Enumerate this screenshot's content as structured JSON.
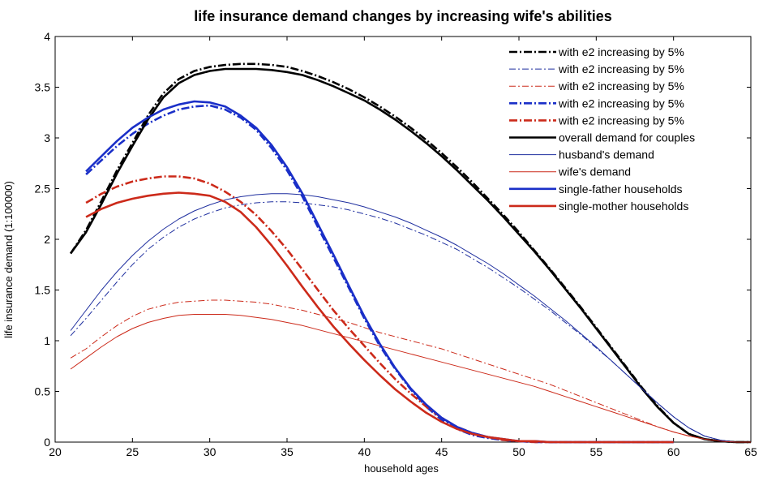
{
  "chart_data": {
    "type": "line",
    "title": "life insurance demand changes by increasing wife's abilities",
    "xlabel": "household ages",
    "ylabel": "life insurance demand (1:100000)",
    "xlim": [
      20,
      65
    ],
    "ylim": [
      0,
      4
    ],
    "x_ticks": [
      "20",
      "25",
      "30",
      "35",
      "40",
      "45",
      "50",
      "55",
      "60",
      "65"
    ],
    "y_ticks": [
      "0",
      "0.5",
      "1",
      "1.5",
      "2",
      "2.5",
      "3",
      "3.5",
      "4"
    ],
    "grid": false,
    "legend_position": "top-right",
    "series": [
      {
        "name": "with e2 increasing by 5%",
        "color": "#000000",
        "style": "dashdot",
        "weight": "bold",
        "x": [
          21,
          22,
          23,
          24,
          25,
          26,
          27,
          28,
          29,
          30,
          31,
          32,
          33,
          34,
          35,
          36,
          37,
          38,
          39,
          40,
          41,
          42,
          43,
          44,
          45,
          46,
          47,
          48,
          49,
          50,
          51,
          52,
          53,
          54,
          55,
          56,
          57,
          58,
          59,
          60,
          61,
          62,
          63,
          64,
          65
        ],
        "y": [
          1.86,
          2.09,
          2.38,
          2.68,
          2.95,
          3.22,
          3.44,
          3.58,
          3.66,
          3.7,
          3.72,
          3.73,
          3.73,
          3.72,
          3.7,
          3.66,
          3.61,
          3.55,
          3.48,
          3.4,
          3.31,
          3.21,
          3.1,
          2.98,
          2.85,
          2.71,
          2.56,
          2.4,
          2.24,
          2.07,
          1.89,
          1.71,
          1.52,
          1.33,
          1.13,
          0.93,
          0.73,
          0.53,
          0.35,
          0.19,
          0.08,
          0.03,
          0.01,
          0.0,
          0.0
        ]
      },
      {
        "name": "with e2 increasing by 5%",
        "color": "#1f2f9f",
        "style": "dashdot",
        "weight": "thin",
        "x": [
          21,
          22,
          23,
          24,
          25,
          26,
          27,
          28,
          29,
          30,
          31,
          32,
          33,
          34,
          35,
          36,
          37,
          38,
          39,
          40,
          41,
          42,
          43,
          44,
          45,
          46,
          47,
          48,
          49,
          50,
          51,
          52,
          53,
          54,
          55,
          56,
          57,
          58,
          59,
          60,
          61,
          62,
          63,
          64,
          65
        ],
        "y": [
          1.05,
          1.22,
          1.4,
          1.58,
          1.75,
          1.9,
          2.02,
          2.12,
          2.2,
          2.26,
          2.31,
          2.34,
          2.36,
          2.37,
          2.37,
          2.36,
          2.34,
          2.32,
          2.29,
          2.25,
          2.21,
          2.16,
          2.1,
          2.04,
          1.97,
          1.9,
          1.81,
          1.72,
          1.62,
          1.52,
          1.41,
          1.3,
          1.18,
          1.06,
          0.93,
          0.8,
          0.66,
          0.52,
          0.38,
          0.25,
          0.14,
          0.06,
          0.02,
          0.0,
          0.0
        ]
      },
      {
        "name": "with e2 increasing by 5%",
        "color": "#cc2a1a",
        "style": "dashdot",
        "weight": "thin",
        "x": [
          21,
          22,
          23,
          24,
          25,
          26,
          27,
          28,
          29,
          30,
          31,
          32,
          33,
          34,
          35,
          36,
          37,
          38,
          39,
          40,
          41,
          42,
          43,
          44,
          45,
          46,
          47,
          48,
          49,
          50,
          51,
          52,
          53,
          54,
          55,
          56,
          57,
          58,
          59,
          60,
          61,
          62,
          63,
          64,
          65
        ],
        "y": [
          0.83,
          0.92,
          1.04,
          1.15,
          1.24,
          1.31,
          1.35,
          1.38,
          1.39,
          1.4,
          1.4,
          1.39,
          1.38,
          1.36,
          1.33,
          1.3,
          1.26,
          1.22,
          1.18,
          1.13,
          1.08,
          1.04,
          1.0,
          0.96,
          0.92,
          0.87,
          0.82,
          0.77,
          0.72,
          0.67,
          0.62,
          0.57,
          0.51,
          0.45,
          0.39,
          0.33,
          0.27,
          0.21,
          0.15,
          0.1,
          0.06,
          0.03,
          0.01,
          0.0,
          0.0
        ]
      },
      {
        "name": "with e2 increasing by 5%",
        "color": "#1a2fc8",
        "style": "dashdot",
        "weight": "bold",
        "x": [
          22,
          23,
          24,
          25,
          26,
          27,
          28,
          29,
          30,
          31,
          32,
          33,
          34,
          35,
          36,
          37,
          38,
          39,
          40,
          41,
          42,
          43,
          44,
          45,
          46,
          47,
          48,
          49,
          50,
          51,
          52,
          53,
          54,
          55,
          56,
          57,
          58,
          59,
          60
        ],
        "y": [
          2.64,
          2.78,
          2.92,
          3.04,
          3.14,
          3.22,
          3.28,
          3.31,
          3.32,
          3.28,
          3.2,
          3.08,
          2.9,
          2.68,
          2.42,
          2.12,
          1.82,
          1.52,
          1.22,
          0.95,
          0.72,
          0.52,
          0.35,
          0.22,
          0.13,
          0.07,
          0.04,
          0.02,
          0.01,
          0.0,
          0.0,
          0.0,
          0.0,
          0.0,
          0.0,
          0.0,
          0.0,
          0.0,
          0.0
        ]
      },
      {
        "name": "with e2 increasing by 5%",
        "color": "#cc2a1a",
        "style": "dashdot",
        "weight": "bold",
        "x": [
          22,
          23,
          24,
          25,
          26,
          27,
          28,
          29,
          30,
          31,
          32,
          33,
          34,
          35,
          36,
          37,
          38,
          39,
          40,
          41,
          42,
          43,
          44,
          45,
          46,
          47,
          48,
          49,
          50,
          51,
          52,
          53,
          54,
          55,
          56,
          57,
          58,
          59,
          60
        ],
        "y": [
          2.36,
          2.45,
          2.52,
          2.57,
          2.6,
          2.62,
          2.62,
          2.6,
          2.55,
          2.47,
          2.37,
          2.24,
          2.08,
          1.9,
          1.7,
          1.5,
          1.3,
          1.12,
          0.95,
          0.78,
          0.62,
          0.48,
          0.35,
          0.24,
          0.15,
          0.09,
          0.05,
          0.02,
          0.01,
          0.0,
          0.0,
          0.0,
          0.0,
          0.0,
          0.0,
          0.0,
          0.0,
          0.0,
          0.0
        ]
      },
      {
        "name": "overall demand for couples",
        "color": "#000000",
        "style": "solid",
        "weight": "bold",
        "x": [
          21,
          22,
          23,
          24,
          25,
          26,
          27,
          28,
          29,
          30,
          31,
          32,
          33,
          34,
          35,
          36,
          37,
          38,
          39,
          40,
          41,
          42,
          43,
          44,
          45,
          46,
          47,
          48,
          49,
          50,
          51,
          52,
          53,
          54,
          55,
          56,
          57,
          58,
          59,
          60,
          61,
          62,
          63,
          64,
          65
        ],
        "y": [
          1.86,
          2.07,
          2.35,
          2.65,
          2.92,
          3.18,
          3.4,
          3.54,
          3.62,
          3.66,
          3.68,
          3.68,
          3.68,
          3.67,
          3.65,
          3.62,
          3.57,
          3.51,
          3.44,
          3.37,
          3.28,
          3.18,
          3.07,
          2.95,
          2.82,
          2.68,
          2.53,
          2.38,
          2.22,
          2.05,
          1.88,
          1.7,
          1.51,
          1.32,
          1.12,
          0.92,
          0.72,
          0.52,
          0.34,
          0.19,
          0.08,
          0.03,
          0.01,
          0.0,
          0.0
        ]
      },
      {
        "name": "husband's demand",
        "color": "#1f2f9f",
        "style": "solid",
        "weight": "thin",
        "x": [
          21,
          22,
          23,
          24,
          25,
          26,
          27,
          28,
          29,
          30,
          31,
          32,
          33,
          34,
          35,
          36,
          37,
          38,
          39,
          40,
          41,
          42,
          43,
          44,
          45,
          46,
          47,
          48,
          49,
          50,
          51,
          52,
          53,
          54,
          55,
          56,
          57,
          58,
          59,
          60,
          61,
          62,
          63,
          64,
          65
        ],
        "y": [
          1.1,
          1.3,
          1.5,
          1.68,
          1.84,
          1.98,
          2.1,
          2.2,
          2.28,
          2.34,
          2.39,
          2.42,
          2.44,
          2.45,
          2.45,
          2.44,
          2.42,
          2.39,
          2.36,
          2.32,
          2.27,
          2.22,
          2.16,
          2.09,
          2.02,
          1.94,
          1.85,
          1.76,
          1.66,
          1.55,
          1.44,
          1.32,
          1.2,
          1.07,
          0.94,
          0.8,
          0.66,
          0.52,
          0.38,
          0.25,
          0.14,
          0.06,
          0.02,
          0.0,
          0.0
        ]
      },
      {
        "name": "wife's demand",
        "color": "#cc2a1a",
        "style": "solid",
        "weight": "thin",
        "x": [
          21,
          22,
          23,
          24,
          25,
          26,
          27,
          28,
          29,
          30,
          31,
          32,
          33,
          34,
          35,
          36,
          37,
          38,
          39,
          40,
          41,
          42,
          43,
          44,
          45,
          46,
          47,
          48,
          49,
          50,
          51,
          52,
          53,
          54,
          55,
          56,
          57,
          58,
          59,
          60,
          61,
          62,
          63,
          64,
          65
        ],
        "y": [
          0.72,
          0.83,
          0.94,
          1.04,
          1.12,
          1.18,
          1.22,
          1.25,
          1.26,
          1.26,
          1.26,
          1.25,
          1.23,
          1.21,
          1.18,
          1.15,
          1.11,
          1.07,
          1.03,
          0.99,
          0.95,
          0.91,
          0.87,
          0.83,
          0.79,
          0.75,
          0.71,
          0.67,
          0.63,
          0.59,
          0.55,
          0.5,
          0.45,
          0.4,
          0.35,
          0.3,
          0.25,
          0.2,
          0.15,
          0.1,
          0.06,
          0.03,
          0.01,
          0.0,
          0.0
        ]
      },
      {
        "name": "single-father households",
        "color": "#1a2fc8",
        "style": "solid",
        "weight": "bold",
        "x": [
          22,
          23,
          24,
          25,
          26,
          27,
          28,
          29,
          30,
          31,
          32,
          33,
          34,
          35,
          36,
          37,
          38,
          39,
          40,
          41,
          42,
          43,
          44,
          45,
          46,
          47,
          48,
          49,
          50,
          51,
          52,
          53,
          54,
          55,
          56,
          57,
          58,
          59,
          60
        ],
        "y": [
          2.67,
          2.82,
          2.97,
          3.1,
          3.2,
          3.28,
          3.33,
          3.36,
          3.35,
          3.31,
          3.22,
          3.1,
          2.93,
          2.71,
          2.45,
          2.15,
          1.85,
          1.54,
          1.24,
          0.97,
          0.73,
          0.53,
          0.37,
          0.24,
          0.15,
          0.09,
          0.05,
          0.03,
          0.01,
          0.01,
          0.0,
          0.0,
          0.0,
          0.0,
          0.0,
          0.0,
          0.0,
          0.0,
          0.0
        ]
      },
      {
        "name": "single-mother households",
        "color": "#cc2a1a",
        "style": "solid",
        "weight": "bold",
        "x": [
          22,
          23,
          24,
          25,
          26,
          27,
          28,
          29,
          30,
          31,
          32,
          33,
          34,
          35,
          36,
          37,
          38,
          39,
          40,
          41,
          42,
          43,
          44,
          45,
          46,
          47,
          48,
          49,
          50,
          51,
          52,
          53,
          54,
          55,
          56,
          57,
          58,
          59,
          60
        ],
        "y": [
          2.22,
          2.3,
          2.36,
          2.4,
          2.43,
          2.45,
          2.46,
          2.45,
          2.43,
          2.37,
          2.27,
          2.12,
          1.94,
          1.74,
          1.53,
          1.33,
          1.14,
          0.97,
          0.81,
          0.66,
          0.52,
          0.4,
          0.29,
          0.2,
          0.13,
          0.08,
          0.05,
          0.03,
          0.01,
          0.01,
          0.0,
          0.0,
          0.0,
          0.0,
          0.0,
          0.0,
          0.0,
          0.0,
          0.0
        ]
      }
    ]
  }
}
